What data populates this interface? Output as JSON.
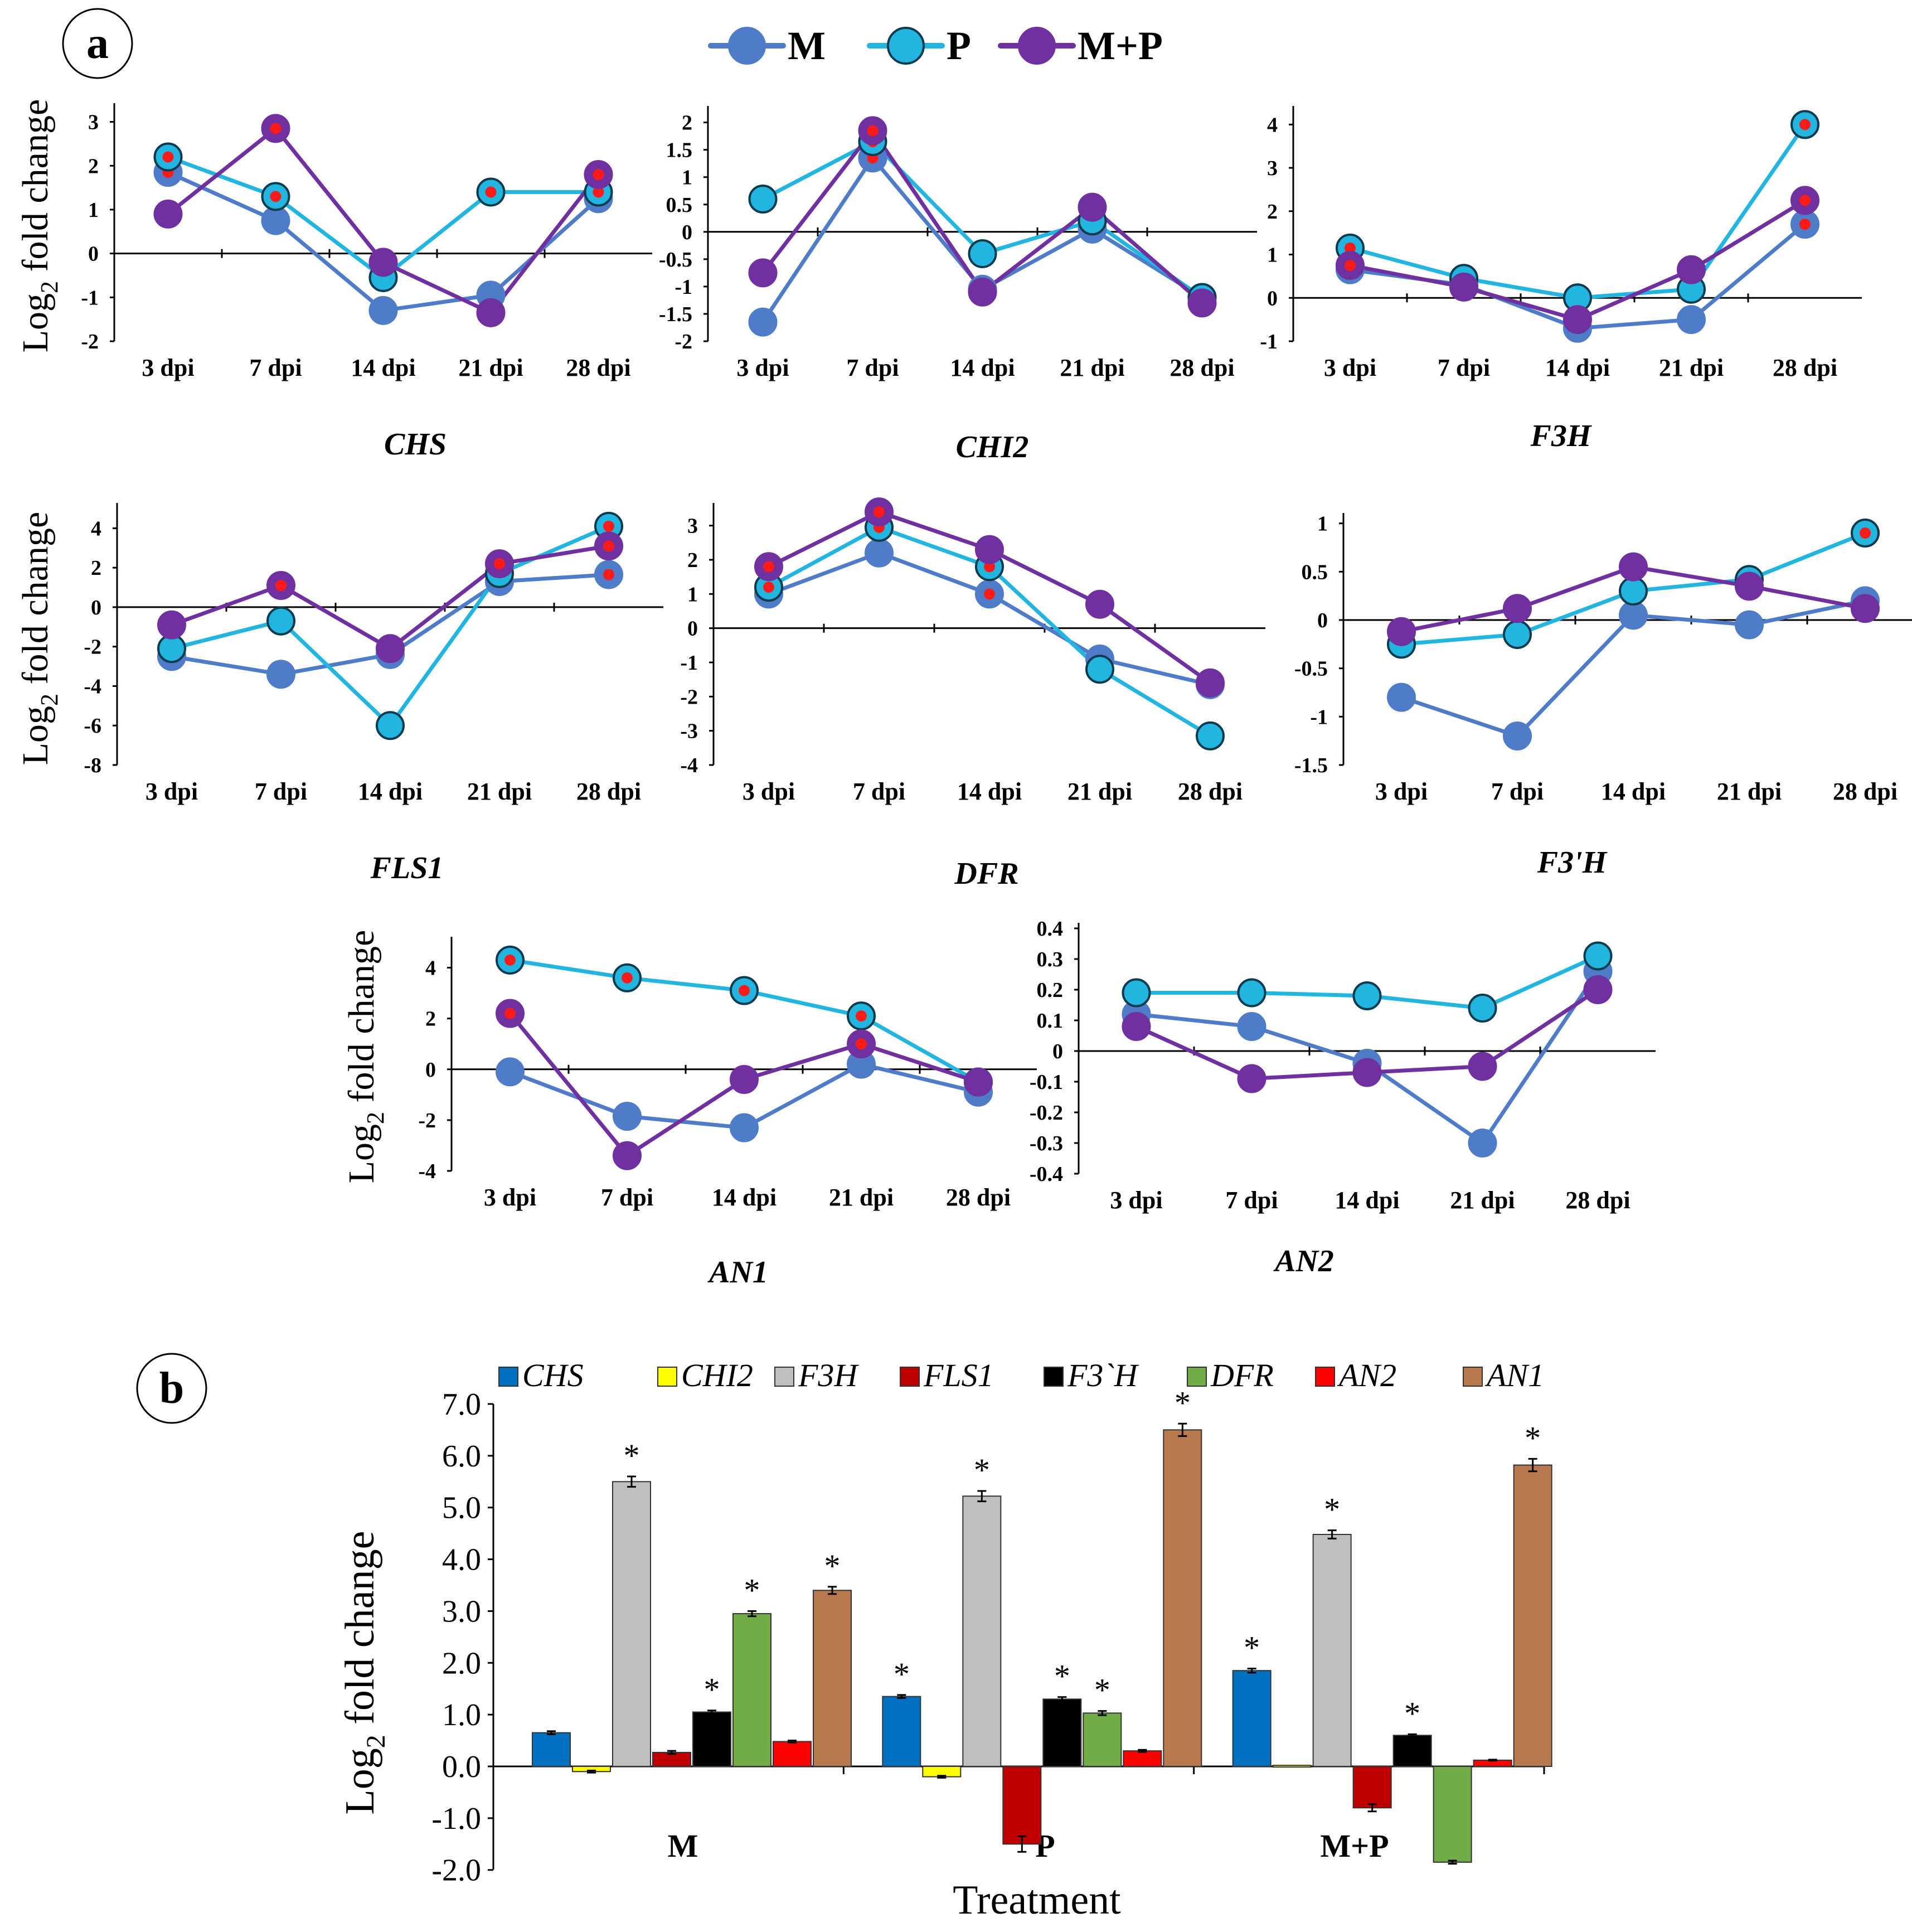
{
  "panel_a": {
    "label": "a",
    "legend": [
      {
        "name": "M",
        "color": "#4f7cc9",
        "fill": "#4f7cc9"
      },
      {
        "name": "P",
        "color": "#21b5e0",
        "fill": "#21b5e0"
      },
      {
        "name": "M+P",
        "color": "#7030a0",
        "fill": "#7030a0"
      }
    ],
    "ylabel_main": "Log",
    "ylabel_sub": "2",
    "ylabel_rest": " fold change"
  },
  "panel_b": {
    "label": "b",
    "xlabel": "Treatment",
    "ylabel_main": "Log",
    "ylabel_sub": "2",
    "ylabel_rest": " fold change"
  },
  "chart_data": [
    {
      "type": "line",
      "title": "CHS",
      "xlabel": "",
      "ylabel": "Log2 fold change",
      "categories": [
        "3 dpi",
        "7 dpi",
        "14 dpi",
        "21 dpi",
        "28 dpi"
      ],
      "ylim": [
        -2,
        3.3
      ],
      "yticks": [
        -2,
        -1,
        0,
        1,
        2,
        3
      ],
      "yticklabels": [
        "-2",
        "-1",
        "0",
        "1",
        "2",
        "3"
      ],
      "series": [
        {
          "name": "M",
          "values": [
            1.85,
            0.75,
            -1.3,
            -0.95,
            1.25
          ],
          "sig": [
            true,
            false,
            false,
            false,
            true
          ]
        },
        {
          "name": "P",
          "values": [
            2.2,
            1.3,
            -0.55,
            1.4,
            1.4
          ],
          "sig": [
            true,
            true,
            false,
            true,
            true
          ]
        },
        {
          "name": "M+P",
          "values": [
            0.9,
            2.85,
            -0.2,
            -1.35,
            1.8
          ],
          "sig": [
            false,
            true,
            false,
            false,
            true
          ]
        }
      ]
    },
    {
      "type": "line",
      "title": "CHI2",
      "xlabel": "",
      "ylabel": "",
      "categories": [
        "3 dpi",
        "7 dpi",
        "14 dpi",
        "21 dpi",
        "28 dpi"
      ],
      "ylim": [
        -2,
        2.2
      ],
      "yticks": [
        -2,
        -1.5,
        -1,
        -0.5,
        0,
        0.5,
        1,
        1.5,
        2
      ],
      "yticklabels": [
        "-2",
        "-1.5",
        "-1",
        "-0.5",
        "0",
        "0.5",
        "1",
        "1.5",
        "2"
      ],
      "series": [
        {
          "name": "M",
          "values": [
            -1.65,
            1.35,
            -1.05,
            0.05,
            -1.2
          ],
          "sig": [
            false,
            true,
            false,
            false,
            false
          ]
        },
        {
          "name": "P",
          "values": [
            0.6,
            1.65,
            -0.4,
            0.2,
            -1.2
          ],
          "sig": [
            false,
            true,
            false,
            false,
            false
          ]
        },
        {
          "name": "M+P",
          "values": [
            -0.75,
            1.85,
            -1.1,
            0.45,
            -1.3
          ],
          "sig": [
            false,
            true,
            false,
            false,
            false
          ]
        }
      ]
    },
    {
      "type": "line",
      "title": "F3H",
      "xlabel": "",
      "ylabel": "",
      "categories": [
        "3 dpi",
        "7 dpi",
        "14 dpi",
        "21 dpi",
        "28 dpi"
      ],
      "ylim": [
        -1,
        4.3
      ],
      "yticks": [
        -1,
        0,
        1,
        2,
        3,
        4
      ],
      "yticklabels": [
        "-1",
        "0",
        "1",
        "2",
        "3",
        "4"
      ],
      "series": [
        {
          "name": "M",
          "values": [
            0.65,
            0.3,
            -0.7,
            -0.5,
            1.7
          ],
          "sig": [
            false,
            false,
            false,
            false,
            true
          ]
        },
        {
          "name": "P",
          "values": [
            1.15,
            0.45,
            0.0,
            0.2,
            4.0
          ],
          "sig": [
            true,
            false,
            false,
            false,
            true
          ]
        },
        {
          "name": "M+P",
          "values": [
            0.75,
            0.25,
            -0.5,
            0.65,
            2.25
          ],
          "sig": [
            true,
            false,
            false,
            false,
            true
          ]
        }
      ]
    },
    {
      "type": "line",
      "title": "FLS1",
      "xlabel": "",
      "ylabel": "Log2 fold change",
      "categories": [
        "3 dpi",
        "7 dpi",
        "14 dpi",
        "21 dpi",
        "28 dpi"
      ],
      "ylim": [
        -8,
        5
      ],
      "yticks": [
        -8,
        -6,
        -4,
        -2,
        0,
        2,
        4
      ],
      "yticklabels": [
        "-8",
        "-6",
        "-4",
        "-2",
        "0",
        "2",
        "4"
      ],
      "series": [
        {
          "name": "M",
          "values": [
            -2.5,
            -3.4,
            -2.4,
            1.3,
            1.65
          ],
          "sig": [
            false,
            false,
            false,
            true,
            true
          ]
        },
        {
          "name": "P",
          "values": [
            -2.1,
            -0.7,
            -6.0,
            1.7,
            4.1
          ],
          "sig": [
            false,
            false,
            false,
            false,
            true
          ]
        },
        {
          "name": "M+P",
          "values": [
            -0.9,
            1.1,
            -2.1,
            2.2,
            3.1
          ],
          "sig": [
            false,
            true,
            false,
            true,
            true
          ]
        }
      ]
    },
    {
      "type": "line",
      "title": "DFR",
      "xlabel": "",
      "ylabel": "",
      "categories": [
        "3 dpi",
        "7 dpi",
        "14 dpi",
        "21 dpi",
        "28 dpi"
      ],
      "ylim": [
        -4,
        3.5
      ],
      "yticks": [
        -4,
        -3,
        -2,
        -1,
        0,
        1,
        2,
        3
      ],
      "yticklabels": [
        "-4",
        "-3",
        "-2",
        "-1",
        "0",
        "1",
        "2",
        "3"
      ],
      "series": [
        {
          "name": "M",
          "values": [
            1.0,
            2.2,
            1.0,
            -0.9,
            -1.65
          ],
          "sig": [
            false,
            false,
            true,
            false,
            false
          ]
        },
        {
          "name": "P",
          "values": [
            1.2,
            2.95,
            1.8,
            -1.2,
            -3.15
          ],
          "sig": [
            true,
            true,
            true,
            false,
            false
          ]
        },
        {
          "name": "M+P",
          "values": [
            1.8,
            3.4,
            2.3,
            0.7,
            -1.6
          ],
          "sig": [
            true,
            true,
            false,
            false,
            false
          ]
        }
      ]
    },
    {
      "type": "line",
      "title": "F3'H",
      "xlabel": "",
      "ylabel": "",
      "categories": [
        "3 dpi",
        "7 dpi",
        "14 dpi",
        "21 dpi",
        "28 dpi"
      ],
      "ylim": [
        -1.5,
        1.05
      ],
      "yticks": [
        -1.5,
        -1,
        -0.5,
        0,
        0.5,
        1
      ],
      "yticklabels": [
        "-1.5",
        "-1",
        "-0.5",
        "0",
        "0.5",
        "1"
      ],
      "series": [
        {
          "name": "M",
          "values": [
            -0.8,
            -1.2,
            0.05,
            -0.05,
            0.2
          ],
          "sig": [
            false,
            false,
            false,
            false,
            false
          ]
        },
        {
          "name": "P",
          "values": [
            -0.25,
            -0.15,
            0.3,
            0.42,
            0.9
          ],
          "sig": [
            false,
            false,
            false,
            false,
            true
          ]
        },
        {
          "name": "M+P",
          "values": [
            -0.12,
            0.12,
            0.55,
            0.35,
            0.12
          ],
          "sig": [
            false,
            false,
            false,
            false,
            false
          ]
        }
      ]
    },
    {
      "type": "line",
      "title": "AN1",
      "xlabel": "",
      "ylabel": "Log2 fold change",
      "categories": [
        "3 dpi",
        "7 dpi",
        "14 dpi",
        "21 dpi",
        "28 dpi"
      ],
      "ylim": [
        -4,
        5
      ],
      "yticks": [
        -4,
        -2,
        0,
        2,
        4
      ],
      "yticklabels": [
        "-4",
        "-2",
        "0",
        "2",
        "4"
      ],
      "series": [
        {
          "name": "M",
          "values": [
            -0.1,
            -1.85,
            -2.3,
            0.2,
            -0.9
          ],
          "sig": [
            false,
            false,
            false,
            false,
            false
          ]
        },
        {
          "name": "P",
          "values": [
            4.3,
            3.6,
            3.1,
            2.1,
            -0.5
          ],
          "sig": [
            true,
            true,
            true,
            true,
            false
          ]
        },
        {
          "name": "M+P",
          "values": [
            2.2,
            -3.4,
            -0.4,
            1.0,
            -0.5
          ],
          "sig": [
            true,
            false,
            false,
            true,
            false
          ]
        }
      ]
    },
    {
      "type": "line",
      "title": "AN2",
      "xlabel": "",
      "ylabel": "",
      "categories": [
        "3 dpi",
        "7 dpi",
        "14 dpi",
        "21 dpi",
        "28 dpi"
      ],
      "ylim": [
        -0.4,
        0.4
      ],
      "yticks": [
        -0.4,
        -0.3,
        -0.2,
        -0.1,
        0,
        0.1,
        0.2,
        0.3,
        0.4
      ],
      "yticklabels": [
        "-0.4",
        "-0.3",
        "-0.2",
        "-0.1",
        "0",
        "0.1",
        "0.2",
        "0.3",
        "0.4"
      ],
      "series": [
        {
          "name": "M",
          "values": [
            0.12,
            0.08,
            -0.04,
            -0.3,
            0.26
          ],
          "sig": [
            false,
            false,
            false,
            false,
            false
          ]
        },
        {
          "name": "P",
          "values": [
            0.19,
            0.19,
            0.18,
            0.14,
            0.31
          ],
          "sig": [
            false,
            false,
            false,
            false,
            false
          ]
        },
        {
          "name": "M+P",
          "values": [
            0.08,
            -0.09,
            -0.07,
            -0.05,
            0.2
          ],
          "sig": [
            false,
            false,
            false,
            false,
            false
          ]
        }
      ]
    },
    {
      "type": "bar",
      "title": "",
      "xlabel": "Treatment",
      "ylabel": "Log2 fold change",
      "categories": [
        "M",
        "P",
        "M+P"
      ],
      "ylim": [
        -2,
        7
      ],
      "yticks": [
        -2,
        -1,
        0,
        1,
        2,
        3,
        4,
        5,
        6,
        7
      ],
      "yticklabels": [
        "-2.0",
        "-1.0",
        "0.0",
        "1.0",
        "2.0",
        "3.0",
        "4.0",
        "5.0",
        "6.0",
        "7.0"
      ],
      "series": [
        {
          "name": "CHS",
          "color": "#0070c0",
          "values": [
            0.65,
            1.35,
            1.85
          ],
          "errors": [
            0.03,
            0.03,
            0.04
          ],
          "sig": [
            false,
            true,
            true
          ]
        },
        {
          "name": "CHI2",
          "color": "#ffff00",
          "values": [
            -0.1,
            -0.2,
            0.02
          ],
          "errors": [
            0.02,
            0.02,
            0.0
          ],
          "sig": [
            false,
            false,
            false
          ]
        },
        {
          "name": "F3H",
          "color": "#bfbfbf",
          "values": [
            5.5,
            5.22,
            4.48
          ],
          "errors": [
            0.1,
            0.1,
            0.08
          ],
          "sig": [
            true,
            true,
            true
          ]
        },
        {
          "name": "FLS1",
          "color": "#c00000",
          "values": [
            0.27,
            -1.5,
            -0.8
          ],
          "errors": [
            0.03,
            0.15,
            0.07
          ],
          "sig": [
            false,
            false,
            false
          ]
        },
        {
          "name": "F3`H",
          "color": "#000000",
          "values": [
            1.05,
            1.3,
            0.6
          ],
          "errors": [
            0.03,
            0.04,
            0.02
          ],
          "sig": [
            true,
            true,
            true
          ]
        },
        {
          "name": "DFR",
          "color": "#70ad47",
          "values": [
            2.95,
            1.03,
            -1.85
          ],
          "errors": [
            0.05,
            0.04,
            0.03
          ],
          "sig": [
            true,
            true,
            false
          ]
        },
        {
          "name": "AN2",
          "color": "#ff0000",
          "values": [
            0.48,
            0.3,
            0.12
          ],
          "errors": [
            0.02,
            0.02,
            0.01
          ],
          "sig": [
            false,
            false,
            false
          ]
        },
        {
          "name": "AN1",
          "color": "#b9794f",
          "values": [
            3.4,
            6.5,
            5.82
          ],
          "errors": [
            0.07,
            0.12,
            0.12
          ],
          "sig": [
            true,
            true,
            true
          ]
        }
      ]
    }
  ]
}
